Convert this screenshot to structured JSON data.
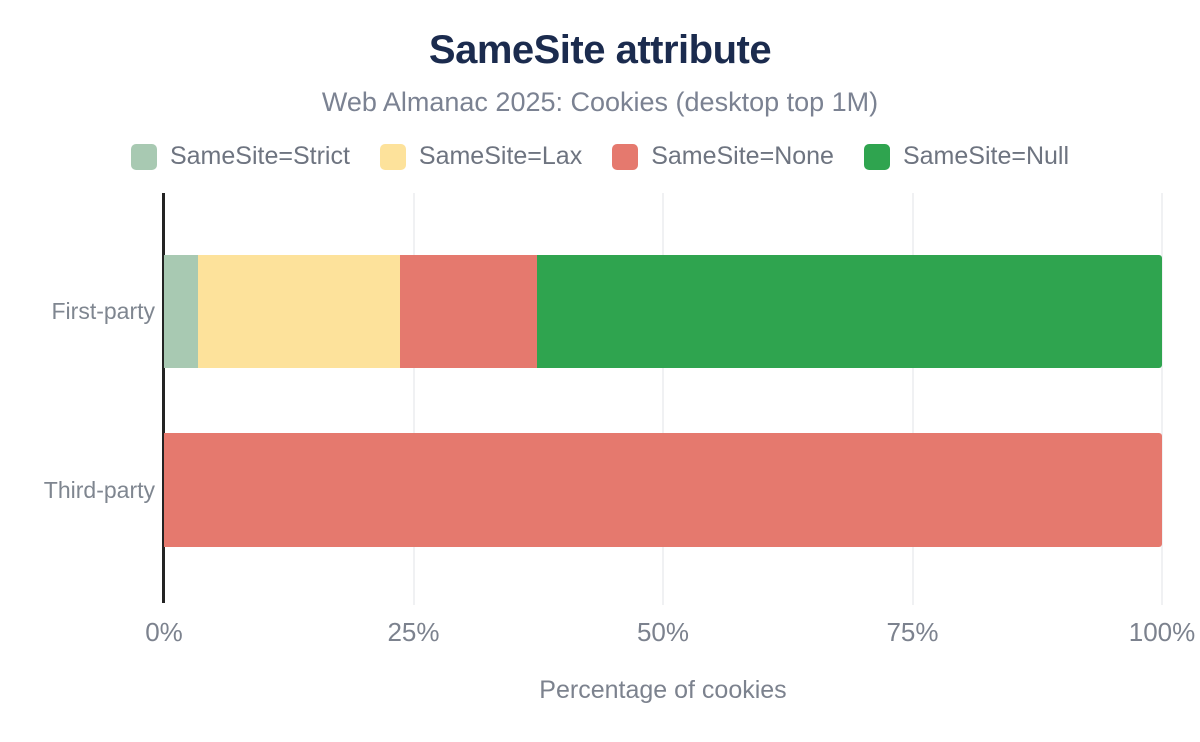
{
  "header": {
    "title": "SameSite attribute",
    "subtitle": "Web Almanac 2025: Cookies (desktop top 1M)"
  },
  "colors": {
    "title_text": "#1b2b4e",
    "muted_text": "#7b8292",
    "axis_text": "#7c828e",
    "legend_text": "#6e7480",
    "axis_line": "#232323",
    "gridline": "#f0f1f3",
    "background": "#ffffff",
    "samesite_strict": "#a8c9b2",
    "samesite_lax": "#fde29b",
    "samesite_none": "#e5796e",
    "samesite_null": "#2fa44f"
  },
  "chart_data": {
    "type": "bar",
    "orientation": "horizontal",
    "stacked": true,
    "title": "SameSite attribute",
    "subtitle": "Web Almanac 2025: Cookies (desktop top 1M)",
    "xlabel": "Percentage of cookies",
    "ylabel": "",
    "xlim": [
      0,
      100
    ],
    "grid": "vertical",
    "legend_position": "top",
    "categories": [
      "First-party",
      "Third-party"
    ],
    "x_ticks": [
      {
        "value": 0,
        "label": "0%"
      },
      {
        "value": 25,
        "label": "25%"
      },
      {
        "value": 50,
        "label": "50%"
      },
      {
        "value": 75,
        "label": "75%"
      },
      {
        "value": 100,
        "label": "100%"
      }
    ],
    "series": [
      {
        "name": "SameSite=Strict",
        "color": "#a8c9b2",
        "values": [
          3.4,
          0
        ]
      },
      {
        "name": "SameSite=Lax",
        "color": "#fde29b",
        "values": [
          20.2,
          0
        ]
      },
      {
        "name": "SameSite=None",
        "color": "#e5796e",
        "values": [
          13.8,
          100
        ]
      },
      {
        "name": "SameSite=Null",
        "color": "#2fa44f",
        "values": [
          62.6,
          0
        ]
      }
    ]
  }
}
